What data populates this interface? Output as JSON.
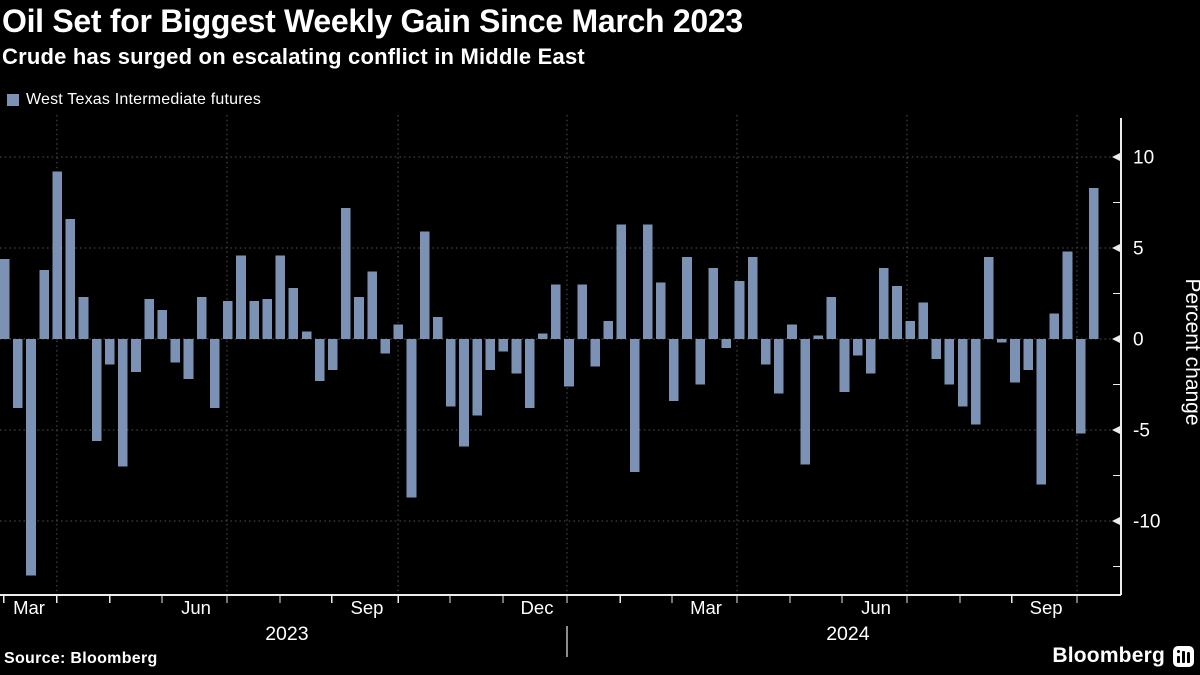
{
  "header": {
    "title": "Oil Set for Biggest Weekly Gain Since March 2023",
    "subtitle": "Crude has surged on escalating conflict in Middle East"
  },
  "legend": {
    "label": "West Texas Intermediate futures",
    "swatch_color": "#7B92B4"
  },
  "footer": {
    "source": "Source: Bloomberg",
    "brand": "Bloomberg"
  },
  "colors": {
    "background": "#000000",
    "text": "#FFFFFF",
    "gridline": "#545454",
    "axis": "#EDEDED",
    "bar": "#7B92B4"
  },
  "chart_data": {
    "type": "bar",
    "title": "Oil Set for Biggest Weekly Gain Since March 2023",
    "subtitle": "Crude has surged on escalating conflict in Middle East",
    "x_unit": "week",
    "ylabel": "Percent change",
    "ylim": [
      -14.1,
      12.1
    ],
    "grid": true,
    "legend_position": "top-left",
    "bar_color": "#7B92B4",
    "y_ticks_major": [
      10,
      5,
      0,
      -5,
      -10
    ],
    "y_ticks_minor": [
      7.5,
      2.5,
      -2.5,
      -7.5,
      -12.5
    ],
    "series": [
      {
        "name": "West Texas Intermediate futures",
        "values": [
          4.4,
          -3.8,
          -13.0,
          3.8,
          9.2,
          6.6,
          2.3,
          -5.6,
          -1.4,
          -7.0,
          -1.8,
          2.2,
          1.6,
          -1.3,
          -2.2,
          2.3,
          -3.8,
          2.1,
          4.6,
          2.1,
          2.2,
          4.6,
          2.8,
          0.4,
          -2.3,
          -1.7,
          7.2,
          2.3,
          3.7,
          -0.8,
          0.8,
          -8.7,
          5.9,
          1.2,
          -3.7,
          -5.9,
          -4.2,
          -1.7,
          -0.7,
          -1.9,
          -3.8,
          0.3,
          3.0,
          -2.6,
          3.0,
          -1.5,
          1.0,
          6.3,
          -7.3,
          6.3,
          3.1,
          -3.4,
          4.5,
          -2.5,
          3.9,
          -0.5,
          3.2,
          4.5,
          -1.4,
          -3.0,
          0.8,
          -6.9,
          0.2,
          2.3,
          -2.9,
          -0.9,
          -1.9,
          3.9,
          2.9,
          1.0,
          2.0,
          -1.1,
          -2.5,
          -3.7,
          -4.7,
          4.5,
          -0.2,
          -2.4,
          -1.7,
          -8.0,
          1.4,
          4.8,
          -5.2,
          8.3
        ]
      }
    ],
    "x_axis": {
      "month_tick_weeks": [
        0.3,
        4.34,
        8.38,
        12.35,
        17.3,
        21.34,
        25.3,
        30.34,
        34.3,
        38.34,
        43.22,
        47.26,
        51.22,
        56.17,
        60.21,
        64.18,
        69.13,
        73.17,
        77.13,
        82.09
      ],
      "quarter_gridline_weeks": [
        4.34,
        17.3,
        30.34,
        43.22,
        56.17,
        69.13,
        82.09
      ],
      "month_labels": [
        {
          "text": "Mar",
          "week": 2.21
        },
        {
          "text": "Jun",
          "week": 14.94
        },
        {
          "text": "Sep",
          "week": 27.97
        },
        {
          "text": "Dec",
          "week": 40.93
        },
        {
          "text": "Mar",
          "week": 53.81
        },
        {
          "text": "Jun",
          "week": 66.77
        },
        {
          "text": "Sep",
          "week": 79.73
        }
      ],
      "year_labels": [
        {
          "text": "2023",
          "week": 21.87
        },
        {
          "text": "2024",
          "week": 64.63
        }
      ],
      "year_separator_week": 43.22
    }
  }
}
